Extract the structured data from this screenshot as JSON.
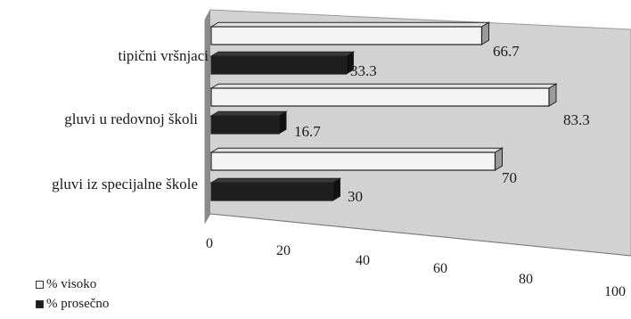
{
  "chart_data": {
    "type": "bar",
    "orientation": "horizontal",
    "three_d": true,
    "categories": [
      "tipični vršnjaci",
      "gluvi u redovnoj školi",
      "gluvi iz specijalne škole"
    ],
    "series": [
      {
        "name": "% visoko",
        "values": [
          66.7,
          83.3,
          70
        ],
        "color": "#f4f4f4"
      },
      {
        "name": "% prosečno",
        "values": [
          33.3,
          16.7,
          30
        ],
        "color": "#1e1e1e"
      }
    ],
    "value_labels": {
      "% visoko": [
        "66.7",
        "83.3",
        "70"
      ],
      "% prosečno": [
        "33.3",
        "16.7",
        "30"
      ]
    },
    "x_ticks": [
      "0",
      "20",
      "40",
      "60",
      "80",
      "100"
    ],
    "xlim": [
      0,
      100
    ],
    "grid": false,
    "legend_position": "bottom-left",
    "wall_color": "#d2d2d2",
    "side_wall_color": "#8a8a8a"
  }
}
